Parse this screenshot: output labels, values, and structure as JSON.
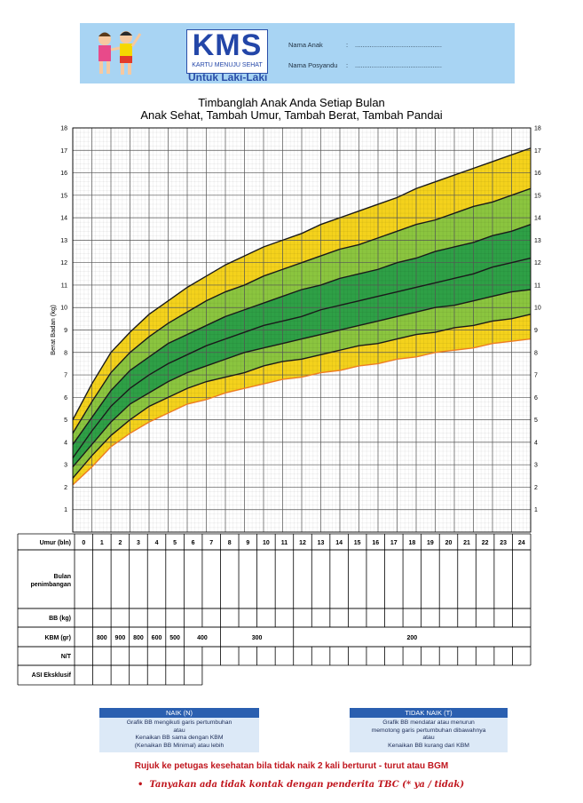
{
  "header": {
    "logo_text": "KMS",
    "logo_sub": "KARTU MENUJU SEHAT",
    "gender_label": "Untuk Laki-Laki",
    "field_nama_anak": "Nama Anak",
    "field_nama_posyandu": "Nama Posyandu",
    "colon": ":",
    "dots_1": "...............................................",
    "dots_2": "...............................................",
    "colors": {
      "header_bg": "#a8d4f3",
      "brand_blue": "#2346a8"
    }
  },
  "titles": {
    "line1": "Timbanglah Anak Anda Setiap Bulan",
    "line2": "Anak Sehat, Tambah Umur, Tambah Berat, Tambah Pandai"
  },
  "chart_data": {
    "type": "area",
    "ylabel": "Berat Badan (kg)",
    "xlabel": "Umur (bln)",
    "xlim": [
      0,
      24
    ],
    "ylim": [
      0,
      18
    ],
    "y_ticks": [
      1,
      2,
      3,
      4,
      5,
      6,
      7,
      8,
      9,
      10,
      11,
      12,
      13,
      14,
      15,
      16,
      17,
      18
    ],
    "x_ticks": [
      0,
      1,
      2,
      3,
      4,
      5,
      6,
      7,
      8,
      9,
      10,
      11,
      12,
      13,
      14,
      15,
      16,
      17,
      18,
      19,
      20,
      21,
      22,
      23,
      24
    ],
    "grid": true,
    "x": [
      0,
      1,
      2,
      3,
      4,
      5,
      6,
      7,
      8,
      9,
      10,
      11,
      12,
      13,
      14,
      15,
      16,
      17,
      18,
      19,
      20,
      21,
      22,
      23,
      24
    ],
    "series": [
      {
        "values": [
          2.1,
          2.9,
          3.8,
          4.4,
          4.9,
          5.3,
          5.7,
          5.9,
          6.2,
          6.4,
          6.6,
          6.8,
          6.9,
          7.1,
          7.2,
          7.4,
          7.5,
          7.7,
          7.8,
          8.0,
          8.1,
          8.2,
          8.4,
          8.5,
          8.6
        ]
      },
      {
        "values": [
          2.4,
          3.4,
          4.3,
          5.0,
          5.6,
          6.0,
          6.4,
          6.7,
          6.9,
          7.1,
          7.4,
          7.6,
          7.7,
          7.9,
          8.1,
          8.3,
          8.4,
          8.6,
          8.8,
          8.9,
          9.1,
          9.2,
          9.4,
          9.5,
          9.7
        ]
      },
      {
        "values": [
          2.9,
          3.9,
          4.9,
          5.7,
          6.2,
          6.7,
          7.1,
          7.4,
          7.7,
          8.0,
          8.2,
          8.4,
          8.6,
          8.8,
          9.0,
          9.2,
          9.4,
          9.6,
          9.8,
          10.0,
          10.1,
          10.3,
          10.5,
          10.7,
          10.8
        ]
      },
      {
        "values": [
          3.3,
          4.5,
          5.6,
          6.4,
          7.0,
          7.5,
          7.9,
          8.3,
          8.6,
          8.9,
          9.2,
          9.4,
          9.6,
          9.9,
          10.1,
          10.3,
          10.5,
          10.7,
          10.9,
          11.1,
          11.3,
          11.5,
          11.8,
          12.0,
          12.2
        ]
      },
      {
        "values": [
          3.9,
          5.1,
          6.3,
          7.2,
          7.8,
          8.4,
          8.8,
          9.2,
          9.6,
          9.9,
          10.2,
          10.5,
          10.8,
          11.0,
          11.3,
          11.5,
          11.7,
          12.0,
          12.2,
          12.5,
          12.7,
          12.9,
          13.2,
          13.4,
          13.7
        ]
      },
      {
        "values": [
          4.4,
          5.8,
          7.1,
          8.0,
          8.7,
          9.3,
          9.8,
          10.3,
          10.7,
          11.0,
          11.4,
          11.7,
          12.0,
          12.3,
          12.6,
          12.8,
          13.1,
          13.4,
          13.7,
          13.9,
          14.2,
          14.5,
          14.7,
          15.0,
          15.3
        ]
      },
      {
        "values": [
          5.0,
          6.6,
          8.0,
          8.9,
          9.7,
          10.3,
          10.9,
          11.4,
          11.9,
          12.3,
          12.7,
          13.0,
          13.3,
          13.7,
          14.0,
          14.3,
          14.6,
          14.9,
          15.3,
          15.6,
          15.9,
          16.2,
          16.5,
          16.8,
          17.1
        ]
      }
    ],
    "band_colors": [
      "#f4d21c",
      "#8bc53f",
      "#2ea046",
      "#2ea046",
      "#8bc53f",
      "#f4d21c"
    ],
    "line_colors": [
      "#ee7d22",
      "#1a1a1a",
      "#1a1a1a",
      "#1a1a1a",
      "#1a1a1a",
      "#1a1a1a",
      "#1a1a1a"
    ]
  },
  "table": {
    "umur_label": "Umur (bln)",
    "months": [
      "0",
      "1",
      "2",
      "3",
      "4",
      "5",
      "6",
      "7",
      "8",
      "9",
      "10",
      "11",
      "12",
      "13",
      "14",
      "15",
      "16",
      "17",
      "18",
      "19",
      "20",
      "21",
      "22",
      "23",
      "24"
    ],
    "row_bulan_label": "Bulan\npenimbangan",
    "row_bb_label": "BB (kg)",
    "row_kbm_label": "KBM (gr)",
    "row_nt_label": "N/T",
    "row_asi_label": "ASI Eksklusif",
    "kbm_values": [
      "800",
      "900",
      "800",
      "600",
      "500",
      "400",
      "300",
      "200"
    ]
  },
  "legend": {
    "naik_title": "NAIK (N)",
    "naik_lines": [
      "Grafik BB mengikuti garis pertumbuhan",
      "atau",
      "Kenaikan BB sama dengan KBM",
      "(Kenaikan BB Minimal) atau lebih"
    ],
    "tidak_title": "TIDAK NAIK (T)",
    "tidak_lines": [
      "Grafik BB mendatar atau menurun",
      "memotong garis pertumbuhan dibawahnya",
      "atau",
      "Kenaikan BB kurang dari KBM"
    ]
  },
  "footer": {
    "rujuk": "Rujuk ke petugas kesehatan bila tidak naik 2 kali berturut - turut atau BGM",
    "tanya": "Tanyakan ada tidak kontak dengan penderita TBC (* ya / tidak)",
    "bullet": "•"
  }
}
